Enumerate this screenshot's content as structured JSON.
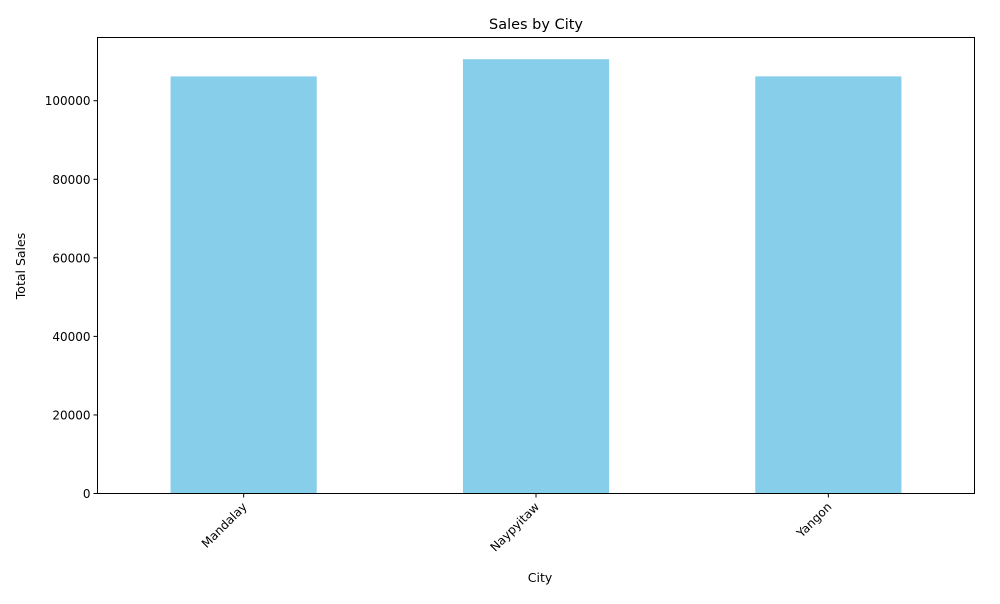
{
  "chart_data": {
    "type": "bar",
    "title": "Sales by City",
    "xlabel": "City",
    "ylabel": "Total Sales",
    "categories": [
      "Mandalay",
      "Naypyitaw",
      "Yangon"
    ],
    "values": [
      106197.67,
      110568.71,
      106200.37
    ],
    "ylim": [
      0,
      116099
    ],
    "yticks": [
      0,
      20000,
      40000,
      60000,
      80000,
      100000
    ],
    "bar_color": "#87ceeb",
    "grid": false,
    "legend": "none",
    "xtick_rotation": 45
  }
}
